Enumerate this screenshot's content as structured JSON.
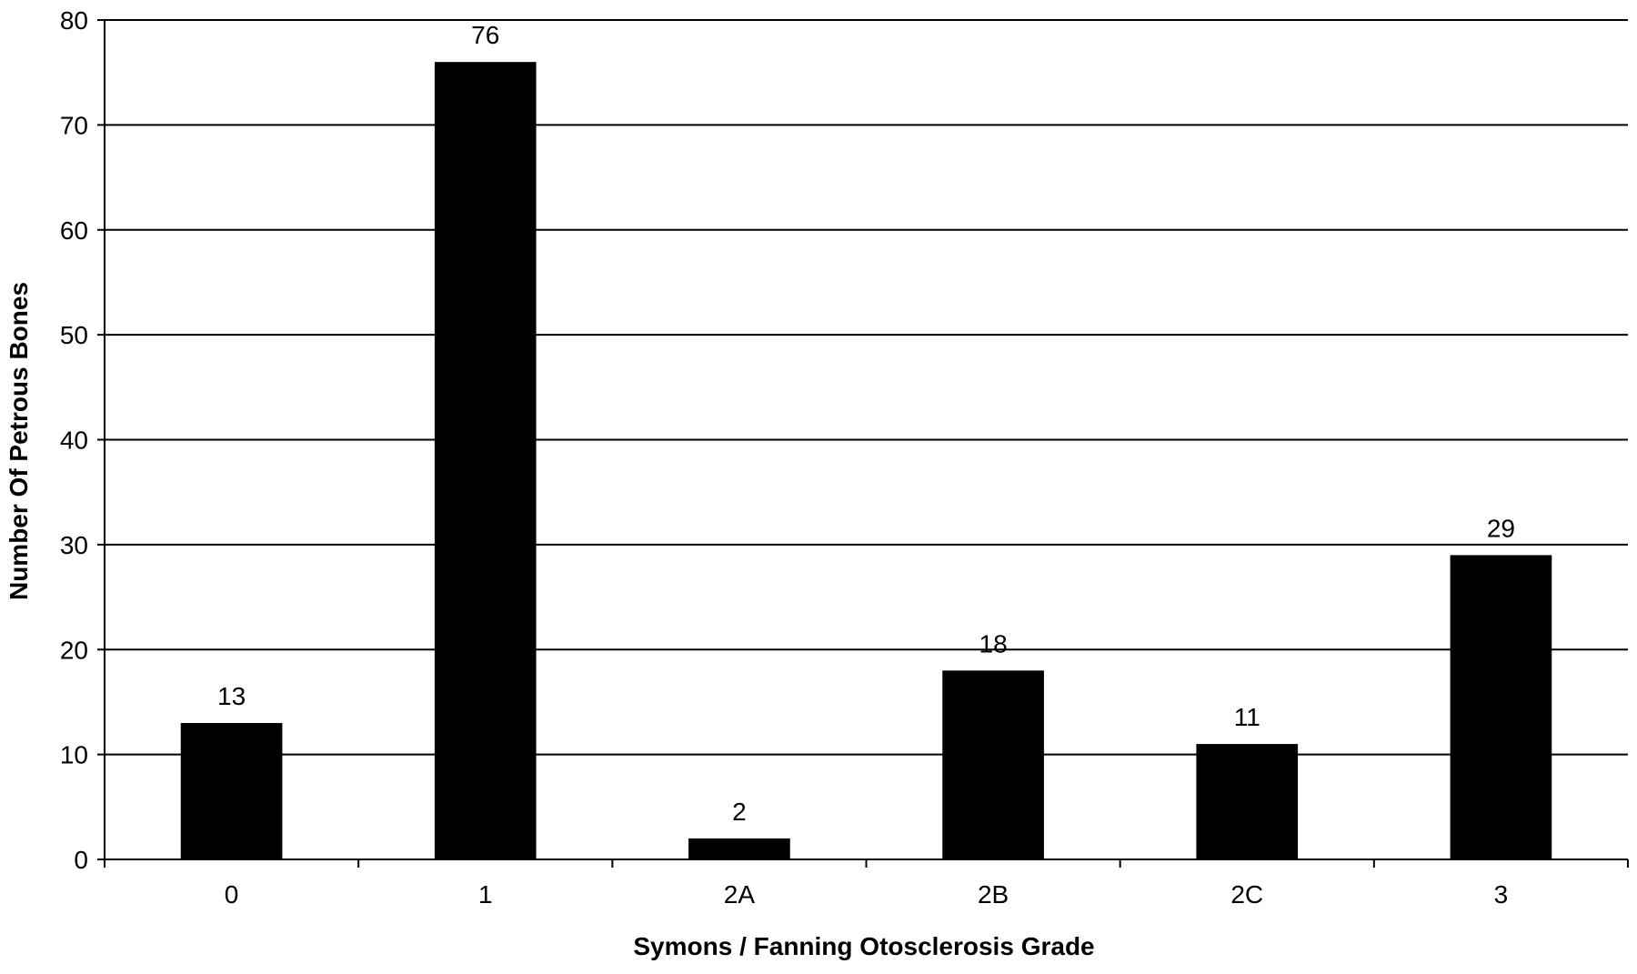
{
  "chart_data": {
    "type": "bar",
    "title": "",
    "xlabel": "Symons / Fanning Otosclerosis Grade",
    "ylabel": "Number Of Petrous Bones",
    "categories": [
      "0",
      "1",
      "2A",
      "2B",
      "2C",
      "3"
    ],
    "values": [
      13,
      76,
      2,
      18,
      11,
      29
    ],
    "data_labels": [
      "13",
      "76",
      "2",
      "18",
      "11",
      "29"
    ],
    "ylim": [
      0,
      80
    ],
    "yticks": [
      0,
      10,
      20,
      30,
      40,
      50,
      60,
      70,
      80
    ],
    "ytick_labels": [
      "0",
      "10",
      "20",
      "30",
      "40",
      "50",
      "60",
      "70",
      "80"
    ],
    "grid": "horizontal",
    "legend": "none",
    "colors": {
      "bar": "#000000",
      "grid": "#000000",
      "axis": "#000000",
      "background": "#ffffff"
    }
  }
}
